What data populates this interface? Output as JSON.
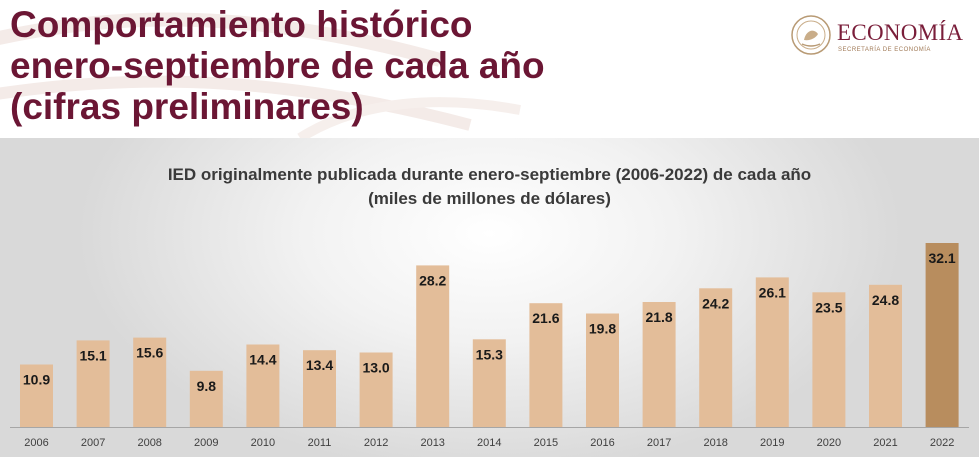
{
  "header": {
    "title": "Comportamiento histórico\nenero-septiembre de cada año\n(cifras preliminares)",
    "logo_name": "ECONOMÍA",
    "logo_sub": "SECRETARÍA DE ECONOMÍA"
  },
  "colors": {
    "title": "#6b1634",
    "bar": "#e3bd99",
    "bar_highlight": "#b88d5e",
    "label": "#1a1a1a"
  },
  "chart_data": {
    "type": "bar",
    "title": "IED originalmente publicada durante enero-septiembre (2006-2022) de cada año",
    "subtitle": "(miles de millones de dólares)",
    "categories": [
      "2006",
      "2007",
      "2008",
      "2009",
      "2010",
      "2011",
      "2012",
      "2013",
      "2014",
      "2015",
      "2016",
      "2017",
      "2018",
      "2019",
      "2020",
      "2021",
      "2022"
    ],
    "values": [
      10.9,
      15.1,
      15.6,
      9.8,
      14.4,
      13.4,
      13.0,
      28.2,
      15.3,
      21.6,
      19.8,
      21.8,
      24.2,
      26.1,
      23.5,
      24.8,
      32.1
    ],
    "value_labels": [
      "10.9",
      "15.1",
      "15.6",
      "9.8",
      "14.4",
      "13.4",
      "13.0",
      "28.2",
      "15.3",
      "21.6",
      "19.8",
      "21.8",
      "24.2",
      "26.1",
      "23.5",
      "24.8",
      "32.1"
    ],
    "highlight": "2022",
    "ylim": [
      0,
      32.1
    ],
    "grid": false,
    "legend": "none",
    "xlabel": "",
    "ylabel": ""
  }
}
